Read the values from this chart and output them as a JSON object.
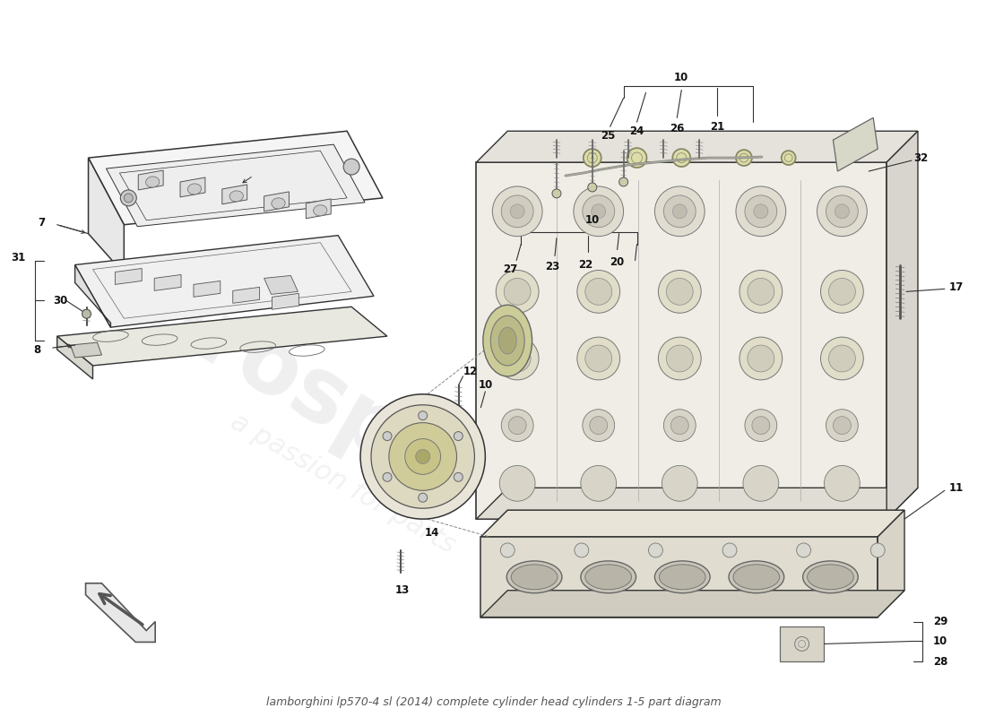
{
  "title": "lamborghini lp570-4 sl (2014) complete cylinder head cylinders 1-5 part diagram",
  "bg": "#ffffff",
  "lc": "#333333",
  "wm1": "eurospares",
  "wm2": "a passion for parts",
  "fs": 8.5,
  "title_fs": 9
}
